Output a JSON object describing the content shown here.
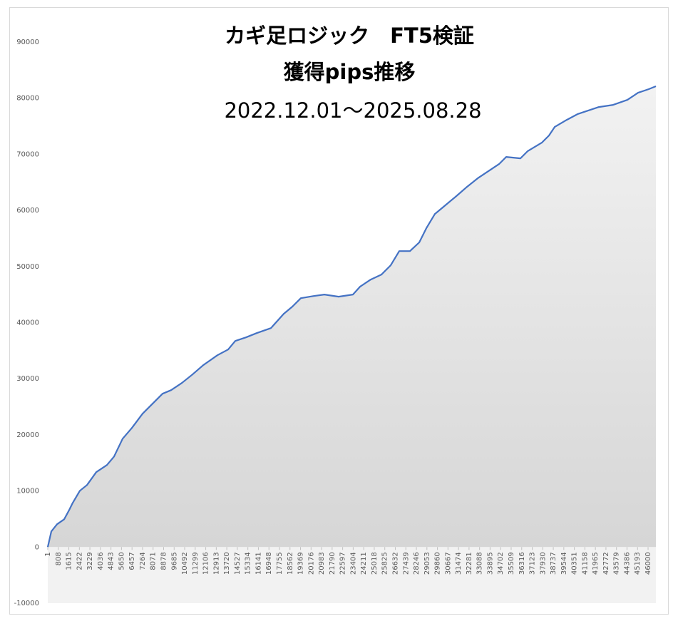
{
  "chart_data": {
    "type": "area",
    "title": "カギ足ロジック　FT5検証",
    "subtitle": "獲得pips推移",
    "period": "2022.12.01～2025.08.28",
    "series": [
      {
        "color": "#4472c4",
        "x": [
          1,
          274,
          711,
          1257,
          1640,
          1913,
          2459,
          3005,
          3715,
          4535,
          5081,
          5737,
          6447,
          7266,
          8086,
          8796,
          9451,
          10271,
          11090,
          11910,
          13003,
          13822,
          14368,
          15188,
          16007,
          17100,
          18083,
          18739,
          19394,
          20377,
          21197,
          22290,
          23382,
          23928,
          24748,
          25567,
          26277,
          26933,
          27752,
          28462,
          29008,
          29664,
          30320,
          31303,
          32122,
          32942,
          33761,
          34581,
          35127,
          36220,
          36766,
          37858,
          38405,
          38842,
          39771,
          40590,
          41409,
          42229,
          43322,
          44414,
          45234,
          46053,
          46600
        ],
        "values": [
          0,
          2800,
          4070,
          4960,
          6600,
          7880,
          10040,
          11060,
          13350,
          14620,
          16140,
          19320,
          21230,
          23770,
          25680,
          27330,
          27970,
          29240,
          30760,
          32410,
          34190,
          35210,
          36740,
          37370,
          38130,
          39020,
          41570,
          42840,
          44360,
          44740,
          45000,
          44620,
          45000,
          46400,
          47670,
          48560,
          50210,
          52750,
          52750,
          54280,
          56820,
          59360,
          60630,
          62540,
          64190,
          65720,
          66990,
          68260,
          69530,
          69280,
          70550,
          72070,
          73340,
          74870,
          76140,
          77160,
          77790,
          78430,
          78810,
          79700,
          80970,
          81610,
          82120
        ]
      }
    ],
    "xlim": [
      1,
      46600
    ],
    "xticks": [
      1,
      808,
      1615,
      2422,
      3229,
      4036,
      4843,
      5650,
      6457,
      7264,
      8071,
      8878,
      9685,
      10492,
      11299,
      12106,
      12913,
      13720,
      14527,
      15334,
      16141,
      16948,
      17755,
      18562,
      19369,
      20176,
      20983,
      21790,
      22597,
      23404,
      24211,
      25018,
      25825,
      26632,
      27439,
      28246,
      29053,
      29860,
      30667,
      31474,
      32281,
      33088,
      33895,
      34702,
      35509,
      36316,
      37123,
      37930,
      38737,
      39544,
      40351,
      41158,
      41965,
      42772,
      43579,
      44386,
      45193,
      46000
    ],
    "ylim": [
      -10000,
      90000
    ],
    "yticks": [
      -10000,
      0,
      10000,
      20000,
      30000,
      40000,
      50000,
      60000,
      70000,
      80000,
      90000
    ]
  }
}
